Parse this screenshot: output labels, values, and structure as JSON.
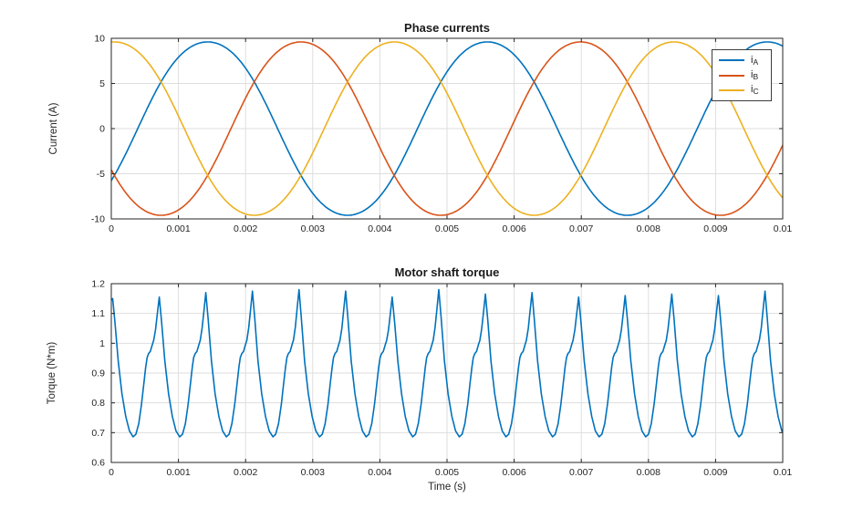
{
  "chart_data": [
    {
      "type": "line",
      "title": "Phase currents",
      "xlabel": "",
      "ylabel": "Current (A)",
      "xlim": [
        0,
        0.01
      ],
      "ylim": [
        -10,
        10
      ],
      "xticks": [
        0,
        0.001,
        0.002,
        0.003,
        0.004,
        0.005,
        0.006,
        0.007,
        0.008,
        0.009,
        0.01
      ],
      "xtick_labels": [
        "0",
        "0.001",
        "0.002",
        "0.003",
        "0.004",
        "0.005",
        "0.006",
        "0.007",
        "0.008",
        "0.009",
        "0.01"
      ],
      "yticks": [
        -10,
        -5,
        0,
        5,
        10
      ],
      "ytick_labels": [
        "-10",
        "-5",
        "0",
        "5",
        "10"
      ],
      "grid": true,
      "legend": {
        "position": "northeast",
        "entries": [
          {
            "label": "i",
            "sub": "A",
            "color": "#0072BD"
          },
          {
            "label": "i",
            "sub": "B",
            "color": "#D95319"
          },
          {
            "label": "i",
            "sub": "C",
            "color": "#EDB120"
          }
        ]
      },
      "series": [
        {
          "name": "i_A",
          "color": "#0072BD",
          "waveform": {
            "kind": "harmonic",
            "freq_hz": 240,
            "phase_deg": -34,
            "amp_fundamental": 9.85,
            "amp_3rd_harmonic": 0.25,
            "peak_amps": 9.6
          }
        },
        {
          "name": "i_B",
          "color": "#D95319",
          "waveform": {
            "kind": "harmonic",
            "freq_hz": 240,
            "phase_deg": -154,
            "amp_fundamental": 9.85,
            "amp_3rd_harmonic": 0.25,
            "peak_amps": 9.6
          }
        },
        {
          "name": "i_C",
          "color": "#EDB120",
          "waveform": {
            "kind": "harmonic",
            "freq_hz": 240,
            "phase_deg": 86,
            "amp_fundamental": 9.85,
            "amp_3rd_harmonic": 0.25,
            "peak_amps": 9.6
          }
        }
      ]
    },
    {
      "type": "line",
      "title": "Motor shaft torque",
      "xlabel": "Time (s)",
      "ylabel": "Torque (N*m)",
      "xlim": [
        0,
        0.01
      ],
      "ylim": [
        0.6,
        1.2
      ],
      "xticks": [
        0,
        0.001,
        0.002,
        0.003,
        0.004,
        0.005,
        0.006,
        0.007,
        0.008,
        0.009,
        0.01
      ],
      "xtick_labels": [
        "0",
        "0.001",
        "0.002",
        "0.003",
        "0.004",
        "0.005",
        "0.006",
        "0.007",
        "0.008",
        "0.009",
        "0.01"
      ],
      "yticks": [
        0.6,
        0.7,
        0.8,
        0.9,
        1,
        1.1,
        1.2
      ],
      "ytick_labels": [
        "0.6",
        "0.7",
        "0.8",
        "0.9",
        "1",
        "1.1",
        "1.2"
      ],
      "grid": true,
      "series": [
        {
          "name": "torque",
          "color": "#0072BD",
          "waveform": {
            "kind": "ripple-cycles",
            "period_s": 0.000694,
            "first_peak_t": 2e-05,
            "start_value": 1.145,
            "cycle_template": [
              [
                0,
                1.17
              ],
              [
                0.05,
                1.08
              ],
              [
                0.12,
                0.94
              ],
              [
                0.2,
                0.83
              ],
              [
                0.28,
                0.755
              ],
              [
                0.36,
                0.706
              ],
              [
                0.44,
                0.686
              ],
              [
                0.5,
                0.695
              ],
              [
                0.56,
                0.73
              ],
              [
                0.62,
                0.795
              ],
              [
                0.67,
                0.865
              ],
              [
                0.71,
                0.92
              ],
              [
                0.74,
                0.952
              ],
              [
                0.77,
                0.965
              ],
              [
                0.81,
                0.973
              ],
              [
                0.85,
                0.995
              ],
              [
                0.88,
                1.01
              ],
              [
                0.92,
                1.05
              ],
              [
                0.96,
                1.11
              ],
              [
                1,
                1.17
              ]
            ],
            "peak_values": [
              1.15,
              1.155,
              1.17,
              1.175,
              1.18,
              1.175,
              1.155,
              1.18,
              1.165,
              1.17,
              1.155,
              1.16,
              1.165,
              1.16,
              1.175
            ],
            "ripple_min": 0.686,
            "ripple_max": 1.18
          }
        }
      ]
    }
  ]
}
